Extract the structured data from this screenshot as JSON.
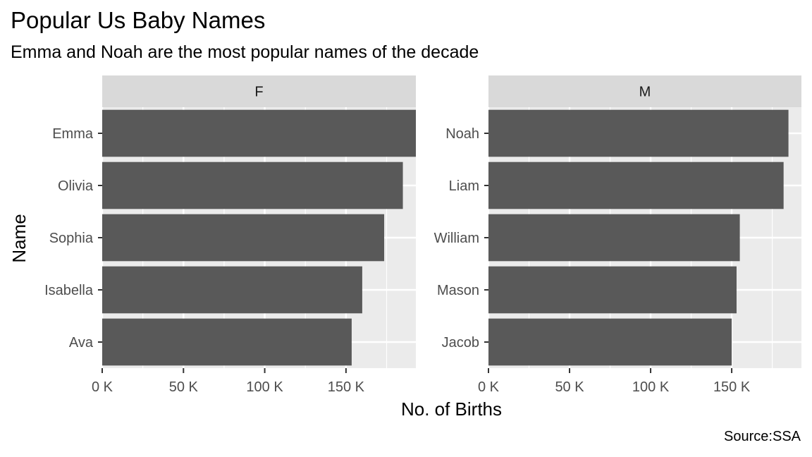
{
  "chart_data": {
    "type": "bar",
    "orientation": "horizontal",
    "title": "Popular Us Baby Names",
    "subtitle": "Emma and Noah are the most popular names of the decade",
    "caption": "Source:SSA",
    "xlabel": "No. of Births",
    "ylabel": "Name",
    "xlim": [
      0,
      193000
    ],
    "x_ticks": [
      0,
      50000,
      100000,
      150000
    ],
    "x_tick_labels": [
      "0 K",
      "50 K",
      "100 K",
      "150 K"
    ],
    "grid": true,
    "facets": [
      {
        "name": "F",
        "categories": [
          "Emma",
          "Olivia",
          "Sophia",
          "Isabella",
          "Ava"
        ],
        "values": [
          193000,
          185000,
          173500,
          160000,
          153500
        ]
      },
      {
        "name": "M",
        "categories": [
          "Noah",
          "Liam",
          "William",
          "Mason",
          "Jacob"
        ],
        "values": [
          185000,
          182000,
          155000,
          153000,
          150000
        ]
      }
    ]
  },
  "colors": {
    "bar": "#595959",
    "panel_bg": "#ebebeb",
    "strip_bg": "#d9d9d9",
    "grid": "#ffffff",
    "axis_text": "#4d4d4d",
    "tick": "#333333"
  }
}
